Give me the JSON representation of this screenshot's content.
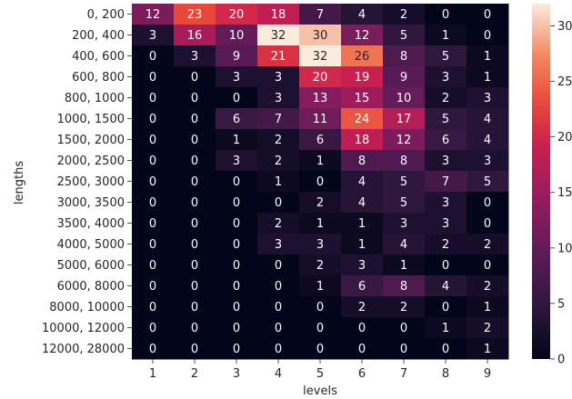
{
  "chart_data": {
    "type": "heatmap",
    "xlabel": "levels",
    "ylabel": "lengths",
    "x_categories": [
      "1",
      "2",
      "3",
      "4",
      "5",
      "6",
      "7",
      "8",
      "9"
    ],
    "y_categories": [
      "0, 200",
      "200, 400",
      "400, 600",
      "600, 800",
      "800, 1000",
      "1000, 1500",
      "1500, 2000",
      "2000, 2500",
      "2500, 3000",
      "3000, 3500",
      "3500, 4000",
      "4000, 5000",
      "5000, 6000",
      "6000, 8000",
      "8000, 10000",
      "10000, 12000",
      "12000, 28000"
    ],
    "values": [
      [
        12,
        23,
        20,
        18,
        7,
        4,
        2,
        0,
        0
      ],
      [
        3,
        16,
        10,
        32,
        30,
        12,
        5,
        1,
        0
      ],
      [
        0,
        3,
        9,
        21,
        32,
        26,
        8,
        5,
        1
      ],
      [
        0,
        0,
        3,
        3,
        20,
        19,
        9,
        3,
        1
      ],
      [
        0,
        0,
        0,
        3,
        13,
        15,
        10,
        2,
        3
      ],
      [
        0,
        0,
        6,
        7,
        11,
        24,
        17,
        5,
        4
      ],
      [
        0,
        0,
        1,
        2,
        6,
        18,
        12,
        6,
        4
      ],
      [
        0,
        0,
        3,
        2,
        1,
        8,
        8,
        3,
        3
      ],
      [
        0,
        0,
        0,
        1,
        0,
        4,
        5,
        7,
        5
      ],
      [
        0,
        0,
        0,
        0,
        2,
        4,
        5,
        3,
        0
      ],
      [
        0,
        0,
        0,
        2,
        1,
        1,
        3,
        3,
        0
      ],
      [
        0,
        0,
        0,
        3,
        3,
        1,
        4,
        2,
        2
      ],
      [
        0,
        0,
        0,
        0,
        2,
        3,
        1,
        0,
        0
      ],
      [
        0,
        0,
        0,
        0,
        1,
        6,
        8,
        4,
        2
      ],
      [
        0,
        0,
        0,
        0,
        0,
        2,
        2,
        0,
        1
      ],
      [
        0,
        0,
        0,
        0,
        0,
        0,
        0,
        1,
        2
      ],
      [
        0,
        0,
        0,
        0,
        0,
        0,
        0,
        0,
        1
      ]
    ],
    "colorbar": {
      "colormap": "rocket",
      "vmin": 0,
      "vmax": 32,
      "ticks": [
        0,
        5,
        10,
        15,
        20,
        25,
        30
      ]
    }
  }
}
